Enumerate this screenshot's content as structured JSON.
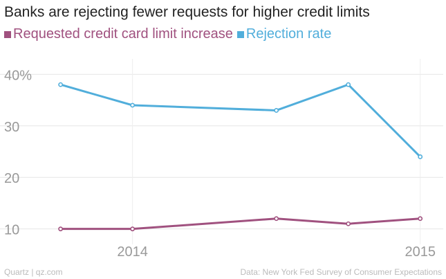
{
  "chart_data": {
    "type": "line",
    "title": "Banks are rejecting fewer requests for higher credit limits",
    "x": [
      2013.75,
      2014.0,
      2014.5,
      2014.75,
      2015.0
    ],
    "x_ticks": [
      2014,
      2015
    ],
    "x_tick_labels": [
      "2014",
      "2015"
    ],
    "xlim": [
      2013.65,
      2015.08
    ],
    "ylim": [
      7,
      43
    ],
    "y_ticks": [
      10,
      20,
      30,
      40
    ],
    "y_tick_labels": [
      "10",
      "20",
      "30",
      "40%"
    ],
    "series": [
      {
        "name": "Requested credit card limit increase",
        "values": [
          10,
          10,
          12,
          11,
          12
        ],
        "color": "#a0517f"
      },
      {
        "name": "Rejection rate",
        "values": [
          38,
          34,
          33,
          38,
          24
        ],
        "color": "#51aedb"
      }
    ],
    "xlabel": "",
    "ylabel": "",
    "grid": true,
    "legend_position": "top-left"
  },
  "footer": {
    "source_left": "Quartz | qz.com",
    "source_right": "Data: New York Fed Survey of Consumer Expectations"
  }
}
